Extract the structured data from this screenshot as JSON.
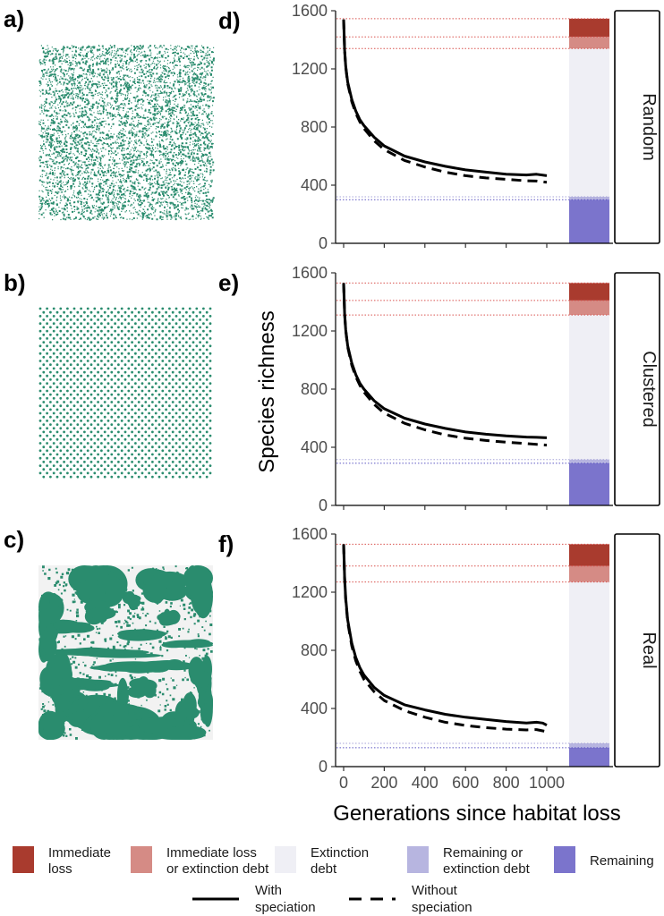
{
  "panel_labels": {
    "a": "a)",
    "b": "b)",
    "c": "c)",
    "d": "d)",
    "e": "e)",
    "f": "f)"
  },
  "colors": {
    "habitat": "#2a8c6e",
    "background_map": "#f2f2f2",
    "immediate_loss": "#a93b2e",
    "immediate_loss_or_debt": "#d58b85",
    "extinction_debt": "#efeff5",
    "remaining_or_debt": "#b7b5e0",
    "remaining": "#7b74cc"
  },
  "landscapes": [
    {
      "id": "a",
      "pattern": "random"
    },
    {
      "id": "b",
      "pattern": "regular-dots"
    },
    {
      "id": "c",
      "pattern": "real-patches"
    }
  ],
  "chart_data": {
    "type": "line",
    "xlabel": "Generations since habitat loss",
    "ylabel": "Species richness",
    "xlim": [
      0,
      1000
    ],
    "ylim": [
      0,
      1600
    ],
    "x_ticks": [
      "0",
      "200",
      "400",
      "600",
      "800",
      "1000"
    ],
    "y_ticks": [
      "0",
      "400",
      "800",
      "1200",
      "1600"
    ],
    "grid": false,
    "legend_position": "bottom",
    "panels": [
      {
        "label": "d)",
        "strip": "Random",
        "series": [
          {
            "name": "With speciation",
            "style": "solid",
            "x": [
              0,
              5,
              10,
              20,
              40,
              60,
              80,
              100,
              150,
              200,
              300,
              400,
              500,
              600,
              700,
              800,
              900,
              950,
              1000
            ],
            "y": [
              1540,
              1330,
              1220,
              1110,
              990,
              910,
              850,
              810,
              730,
              670,
              600,
              560,
              530,
              505,
              490,
              475,
              470,
              475,
              465
            ]
          },
          {
            "name": "Without speciation",
            "style": "dashed",
            "x": [
              0,
              5,
              10,
              20,
              40,
              60,
              80,
              100,
              150,
              200,
              300,
              400,
              500,
              600,
              700,
              800,
              900,
              950,
              1000
            ],
            "y": [
              1540,
              1330,
              1215,
              1100,
              975,
              895,
              835,
              790,
              705,
              645,
              570,
              525,
              490,
              465,
              450,
              440,
              430,
              428,
              420
            ]
          }
        ],
        "bar_levels": [
          1545,
          1420,
          1340,
          320,
          300,
          0
        ]
      },
      {
        "label": "e)",
        "strip": "Clustered",
        "series": [
          {
            "name": "With speciation",
            "style": "solid",
            "x": [
              0,
              5,
              10,
              20,
              40,
              60,
              80,
              100,
              150,
              200,
              300,
              400,
              500,
              600,
              700,
              800,
              900,
              950,
              1000
            ],
            "y": [
              1530,
              1320,
              1210,
              1100,
              980,
              900,
              840,
              800,
              720,
              665,
              600,
              560,
              530,
              505,
              490,
              478,
              470,
              468,
              465
            ]
          },
          {
            "name": "Without speciation",
            "style": "dashed",
            "x": [
              0,
              5,
              10,
              20,
              40,
              60,
              80,
              100,
              150,
              200,
              300,
              400,
              500,
              600,
              700,
              800,
              900,
              950,
              1000
            ],
            "y": [
              1530,
              1320,
              1205,
              1090,
              965,
              885,
              825,
              780,
              695,
              635,
              565,
              520,
              485,
              462,
              447,
              435,
              425,
              420,
              415
            ]
          }
        ],
        "bar_levels": [
          1530,
          1410,
          1310,
          315,
          290,
          0
        ]
      },
      {
        "label": "f)",
        "strip": "Real",
        "series": [
          {
            "name": "With speciation",
            "style": "solid",
            "x": [
              0,
              5,
              10,
              20,
              40,
              60,
              80,
              100,
              150,
              200,
              300,
              400,
              500,
              600,
              700,
              800,
              900,
              950,
              980,
              1000
            ],
            "y": [
              1530,
              1300,
              1160,
              1010,
              850,
              750,
              680,
              630,
              545,
              490,
              425,
              390,
              360,
              340,
              325,
              310,
              300,
              305,
              300,
              285
            ]
          },
          {
            "name": "Without speciation",
            "style": "dashed",
            "x": [
              0,
              5,
              10,
              20,
              40,
              60,
              80,
              100,
              150,
              200,
              300,
              400,
              500,
              600,
              700,
              800,
              900,
              950,
              1000
            ],
            "y": [
              1530,
              1295,
              1150,
              995,
              830,
              728,
              655,
              600,
              515,
              455,
              385,
              340,
              305,
              283,
              268,
              258,
              252,
              255,
              240
            ]
          }
        ],
        "bar_levels": [
          1530,
          1380,
          1270,
          160,
          130,
          0
        ]
      }
    ]
  },
  "legend": {
    "bars": [
      {
        "key": "immediate_loss",
        "line1": "Immediate",
        "line2": "loss"
      },
      {
        "key": "immediate_loss_or_debt",
        "line1": "Immediate loss",
        "line2": "or extinction debt"
      },
      {
        "key": "extinction_debt",
        "line1": "Extinction",
        "line2": "debt"
      },
      {
        "key": "remaining_or_debt",
        "line1": "Remaining or",
        "line2": "extinction debt"
      },
      {
        "key": "remaining",
        "line1": "Remaining",
        "line2": ""
      }
    ],
    "lines": [
      {
        "style": "solid",
        "line1": "With",
        "line2": "speciation"
      },
      {
        "style": "dashed",
        "line1": "Without",
        "line2": "speciation"
      }
    ]
  }
}
